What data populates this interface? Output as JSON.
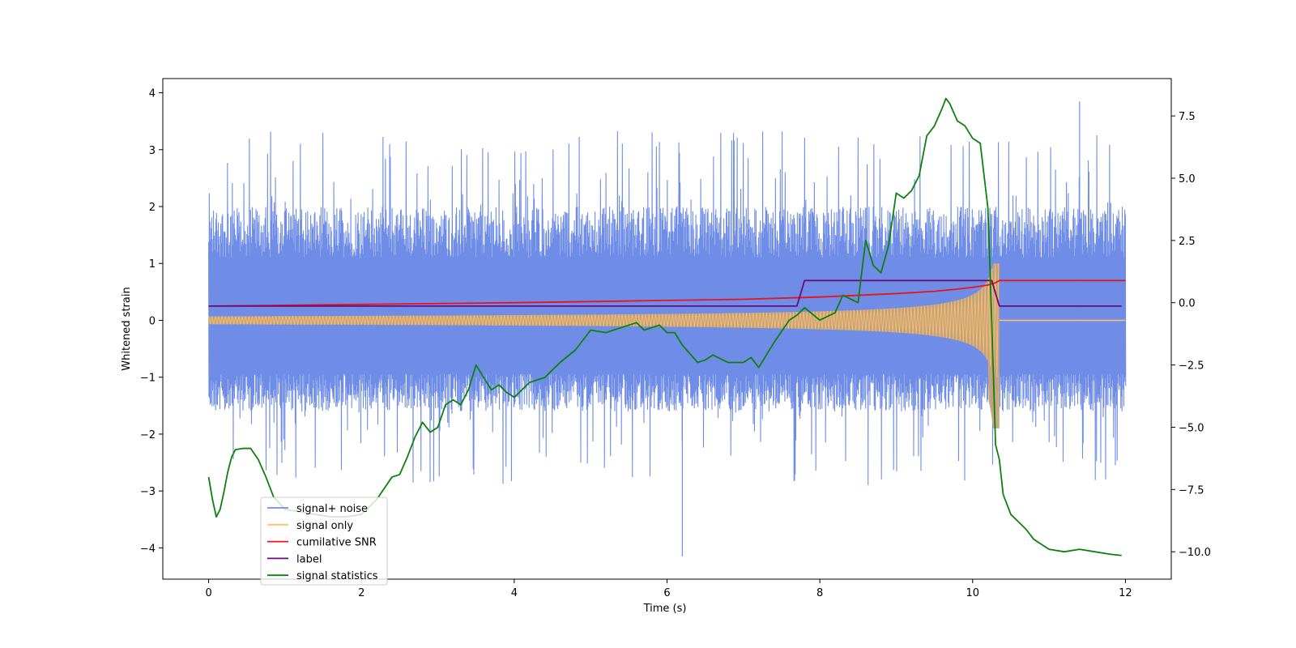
{
  "chart_data": {
    "type": "line",
    "xlabel": "Time (s)",
    "ylabel": "Whitened strain",
    "xlim": [
      -0.6,
      12.6
    ],
    "ylim": [
      -4.55,
      4.25
    ],
    "y2lim": [
      -11.1,
      9.0
    ],
    "xticks": [
      0,
      2,
      4,
      6,
      8,
      10,
      12
    ],
    "yticks": [
      -4,
      -3,
      -2,
      -1,
      0,
      1,
      2,
      3,
      4
    ],
    "y2ticks": [
      -10.0,
      -7.5,
      -5.0,
      -2.5,
      0.0,
      2.5,
      5.0,
      7.5
    ],
    "xtick_labels": [
      "0",
      "2",
      "4",
      "6",
      "8",
      "10",
      "12"
    ],
    "ytick_labels": [
      "−4",
      "−3",
      "−2",
      "−1",
      "0",
      "1",
      "2",
      "3",
      "4"
    ],
    "y2tick_labels": [
      "−10.0",
      "−7.5",
      "−5.0",
      "−2.5",
      "0.0",
      "2.5",
      "5.0",
      "7.5"
    ],
    "grid": false,
    "legend_position": "lower-left",
    "series": [
      {
        "name": "signal+ noise",
        "color": "#6f8de6",
        "axis": "left",
        "style": "noise",
        "x_range": [
          0,
          12
        ],
        "noise_band": [
          -1.6,
          2.0
        ],
        "extremes": [
          -4.15,
          3.85
        ]
      },
      {
        "name": "signal only",
        "color": "#ffc068",
        "axis": "left",
        "style": "chirp",
        "x_range": [
          0,
          10.35
        ],
        "envelope_start": 0.07,
        "envelope_peak": [
          1.0,
          -1.95
        ],
        "after_merger_value": 0.0,
        "after_merger_range": [
          10.35,
          12
        ]
      },
      {
        "name": "cumilative SNR",
        "color": "#e8131c",
        "axis": "left",
        "style": "line",
        "x": [
          0,
          2,
          4,
          6,
          7,
          8,
          8.5,
          9,
          9.5,
          9.8,
          10,
          10.2,
          10.3,
          10.35,
          12
        ],
        "values": [
          0.25,
          0.28,
          0.31,
          0.35,
          0.37,
          0.41,
          0.44,
          0.47,
          0.51,
          0.55,
          0.58,
          0.62,
          0.66,
          0.7,
          0.7
        ]
      },
      {
        "name": "label",
        "color": "#6a0d78",
        "axis": "left",
        "style": "line",
        "x": [
          0,
          7.7,
          7.8,
          10.25,
          10.35,
          11.95
        ],
        "values": [
          0.25,
          0.25,
          0.7,
          0.7,
          0.25,
          0.25
        ]
      },
      {
        "name": "signal statistics",
        "color": "#0f800f",
        "axis": "right",
        "style": "line",
        "x": [
          0,
          0.05,
          0.1,
          0.15,
          0.2,
          0.25,
          0.3,
          0.35,
          0.45,
          0.55,
          0.65,
          0.75,
          0.85,
          1.0,
          1.2,
          1.4,
          1.6,
          1.8,
          2.0,
          2.2,
          2.4,
          2.5,
          2.6,
          2.7,
          2.8,
          2.9,
          3.0,
          3.1,
          3.2,
          3.3,
          3.4,
          3.5,
          3.6,
          3.7,
          3.8,
          3.9,
          4.0,
          4.2,
          4.4,
          4.6,
          4.8,
          5.0,
          5.2,
          5.4,
          5.6,
          5.7,
          5.9,
          6.0,
          6.1,
          6.2,
          6.4,
          6.5,
          6.6,
          6.8,
          7.0,
          7.1,
          7.2,
          7.4,
          7.6,
          7.7,
          7.8,
          8.0,
          8.2,
          8.3,
          8.5,
          8.6,
          8.7,
          8.8,
          8.9,
          9.0,
          9.1,
          9.2,
          9.3,
          9.4,
          9.5,
          9.6,
          9.65,
          9.7,
          9.8,
          9.9,
          10.0,
          10.1,
          10.2,
          10.25,
          10.3,
          10.35,
          10.4,
          10.5,
          10.6,
          10.7,
          10.8,
          10.9,
          11.0,
          11.2,
          11.4,
          11.6,
          11.8,
          11.95
        ],
        "values": [
          -7.0,
          -7.9,
          -8.6,
          -8.3,
          -7.6,
          -6.8,
          -6.2,
          -5.9,
          -5.85,
          -5.85,
          -6.3,
          -7.0,
          -7.8,
          -8.3,
          -8.4,
          -8.5,
          -8.6,
          -8.6,
          -8.5,
          -7.9,
          -7.0,
          -6.9,
          -6.2,
          -5.4,
          -4.8,
          -5.2,
          -5.0,
          -4.1,
          -3.9,
          -4.1,
          -3.5,
          -2.5,
          -3.0,
          -3.5,
          -3.3,
          -3.6,
          -3.8,
          -3.2,
          -3.0,
          -2.4,
          -1.9,
          -1.1,
          -1.2,
          -1.0,
          -0.8,
          -1.1,
          -0.9,
          -1.2,
          -1.2,
          -1.7,
          -2.4,
          -2.3,
          -2.1,
          -2.4,
          -2.4,
          -2.2,
          -2.6,
          -1.6,
          -0.7,
          -0.5,
          -0.2,
          -0.7,
          -0.4,
          0.3,
          0.0,
          2.5,
          1.5,
          1.2,
          2.3,
          4.4,
          4.2,
          4.5,
          5.1,
          6.7,
          7.1,
          7.8,
          8.2,
          8.0,
          7.3,
          7.1,
          6.6,
          6.4,
          3.8,
          -0.7,
          -5.7,
          -6.3,
          -7.7,
          -8.5,
          -8.8,
          -9.1,
          -9.5,
          -9.7,
          -9.9,
          -10.0,
          -9.9,
          -10.0,
          -10.1,
          -10.15
        ]
      }
    ]
  }
}
